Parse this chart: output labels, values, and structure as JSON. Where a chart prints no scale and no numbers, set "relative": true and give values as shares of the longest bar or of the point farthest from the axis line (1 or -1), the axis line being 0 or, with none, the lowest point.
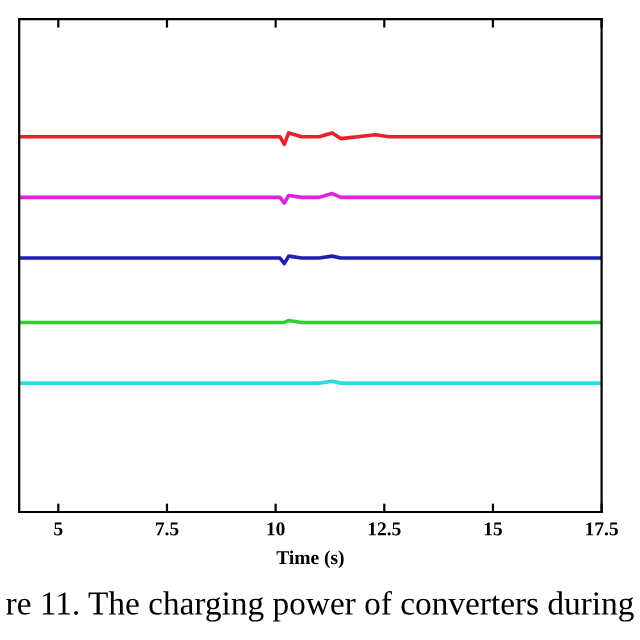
{
  "chart_data": {
    "type": "line",
    "relative": true,
    "xlabel": "Time (s)",
    "annotations": [
      "re 11. The charging power of converters during"
    ],
    "xlim": [
      4.1,
      17.5
    ],
    "xticks": [
      5,
      7.5,
      10,
      12.5,
      15,
      17.5
    ],
    "grid": false,
    "x": [
      4.1,
      10.1,
      10.2,
      10.3,
      10.6,
      11.0,
      11.3,
      11.5,
      12.3,
      12.6,
      17.5
    ],
    "series": [
      {
        "color": "#e8202a",
        "values": [
          0.99,
          0.99,
          0.97,
          1.0,
          0.99,
          0.99,
          1.0,
          0.985,
          0.995,
          0.99,
          0.99
        ]
      },
      {
        "color": "#e020e0",
        "values": [
          0.83,
          0.83,
          0.815,
          0.835,
          0.83,
          0.83,
          0.84,
          0.83,
          0.83,
          0.83,
          0.83
        ]
      },
      {
        "color": "#2020b0",
        "values": [
          0.67,
          0.67,
          0.655,
          0.675,
          0.67,
          0.67,
          0.675,
          0.67,
          0.67,
          0.67,
          0.67
        ]
      },
      {
        "color": "#30d030",
        "values": [
          0.5,
          0.5,
          0.5,
          0.505,
          0.5,
          0.5,
          0.5,
          0.5,
          0.5,
          0.5,
          0.5
        ]
      },
      {
        "color": "#30d8e0",
        "values": [
          0.34,
          0.34,
          0.34,
          0.34,
          0.34,
          0.34,
          0.345,
          0.34,
          0.34,
          0.34,
          0.34
        ]
      }
    ]
  }
}
